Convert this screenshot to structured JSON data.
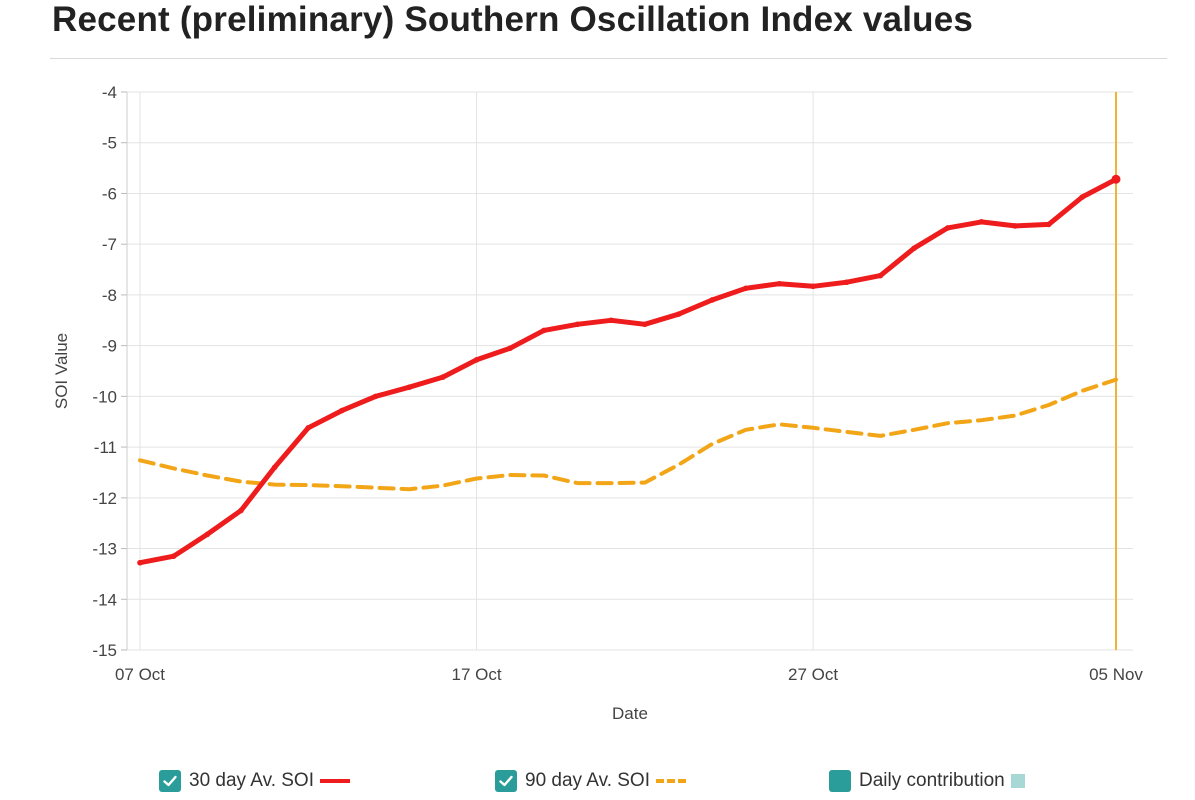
{
  "page": {
    "title": "Recent (preliminary) Southern Oscillation Index values"
  },
  "colors": {
    "series30": "#ee1c1c",
    "series90": "#f2a516",
    "marker_line": "#f2b232",
    "checkbox": "#2a9d9a",
    "daily": "#a8d8d6",
    "grid": "#e3e3e3",
    "axis_text": "#444444"
  },
  "chart_data": {
    "type": "line",
    "xlabel": "Date",
    "ylabel": "SOI Value",
    "ylim": [
      -15,
      -4
    ],
    "yticks": [
      -4,
      -5,
      -6,
      -7,
      -8,
      -9,
      -10,
      -11,
      -12,
      -13,
      -14,
      -15
    ],
    "x_start": "07 Oct",
    "x_end": "05 Nov",
    "xticks": [
      {
        "label": "07 Oct",
        "day": 0
      },
      {
        "label": "17 Oct",
        "day": 10
      },
      {
        "label": "27 Oct",
        "day": 20
      },
      {
        "label": "05 Nov",
        "day": 29
      }
    ],
    "marker_at": "05 Nov",
    "grid": true,
    "legend_position": "bottom",
    "series": [
      {
        "name": "30 day Av. SOI",
        "style": "solid",
        "values": [
          -13.28,
          -13.15,
          -12.72,
          -12.25,
          -11.4,
          -10.62,
          -10.28,
          -10.0,
          -9.82,
          -9.62,
          -9.28,
          -9.05,
          -8.7,
          -8.58,
          -8.5,
          -8.58,
          -8.38,
          -8.1,
          -7.87,
          -7.78,
          -7.83,
          -7.75,
          -7.62,
          -7.08,
          -6.68,
          -6.56,
          -6.64,
          -6.61,
          -6.07,
          -5.72
        ]
      },
      {
        "name": "90 day Av. SOI",
        "style": "dashed",
        "values": [
          -11.26,
          -11.42,
          -11.56,
          -11.68,
          -11.74,
          -11.75,
          -11.77,
          -11.8,
          -11.83,
          -11.76,
          -11.62,
          -11.55,
          -11.56,
          -11.71,
          -11.71,
          -11.7,
          -11.35,
          -10.94,
          -10.66,
          -10.55,
          -10.62,
          -10.7,
          -10.78,
          -10.66,
          -10.53,
          -10.47,
          -10.38,
          -10.17,
          -9.89,
          -9.67
        ]
      }
    ]
  },
  "legend": {
    "items": [
      {
        "label": "30 day Av. SOI",
        "checked": true
      },
      {
        "label": "90 day Av. SOI",
        "checked": true
      },
      {
        "label": "Daily contribution",
        "checked": false
      }
    ]
  }
}
